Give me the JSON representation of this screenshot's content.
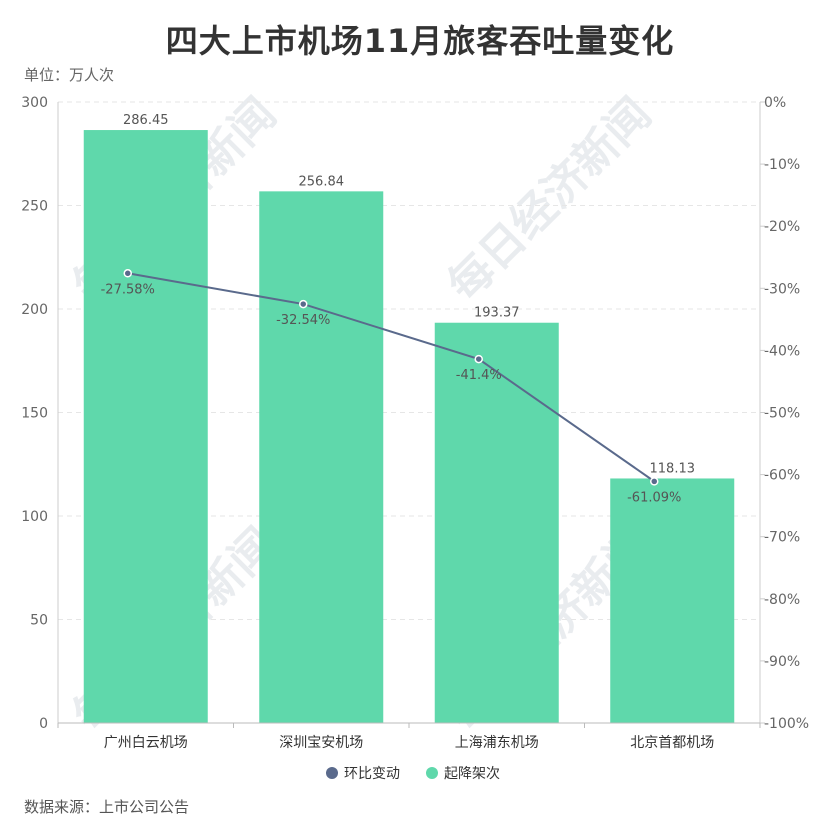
{
  "title": "四大上市机场11月旅客吞吐量变化",
  "unit_label": "单位：万人次",
  "source": "数据来源：上市公司公告",
  "watermark": "每日经济新闻",
  "chart_data": {
    "type": "bar",
    "categories": [
      "广州白云机场",
      "深圳宝安机场",
      "上海浦东机场",
      "北京首都机场"
    ],
    "series": [
      {
        "name": "起降架次",
        "type": "bar",
        "axis": "left",
        "color": "#5fd8ab",
        "values": [
          286.45,
          256.84,
          193.37,
          118.13
        ],
        "labels": [
          "286.45",
          "256.84",
          "193.37",
          "118.13"
        ]
      },
      {
        "name": "环比变动",
        "type": "line",
        "axis": "right",
        "color": "#5a6a8c",
        "values": [
          -27.58,
          -32.54,
          -41.4,
          -61.09
        ],
        "labels": [
          "-27.58%",
          "-32.54%",
          "-41.4%",
          "-61.09%"
        ]
      }
    ],
    "y_left": {
      "ylim": [
        0,
        300
      ],
      "ticks": [
        0,
        50,
        100,
        150,
        200,
        250,
        300
      ],
      "tick_labels": [
        "0",
        "50",
        "100",
        "150",
        "200",
        "250",
        "300"
      ]
    },
    "y_right": {
      "ylim": [
        -100,
        0
      ],
      "ticks": [
        0,
        -10,
        -20,
        -30,
        -40,
        -50,
        -60,
        -70,
        -80,
        -90,
        -100
      ],
      "tick_labels": [
        "0%",
        "-10%",
        "-20%",
        "-30%",
        "-40%",
        "-50%",
        "-60%",
        "-70%",
        "-80%",
        "-90%",
        "-100%"
      ]
    },
    "grid": true,
    "legend_position": "bottom"
  }
}
